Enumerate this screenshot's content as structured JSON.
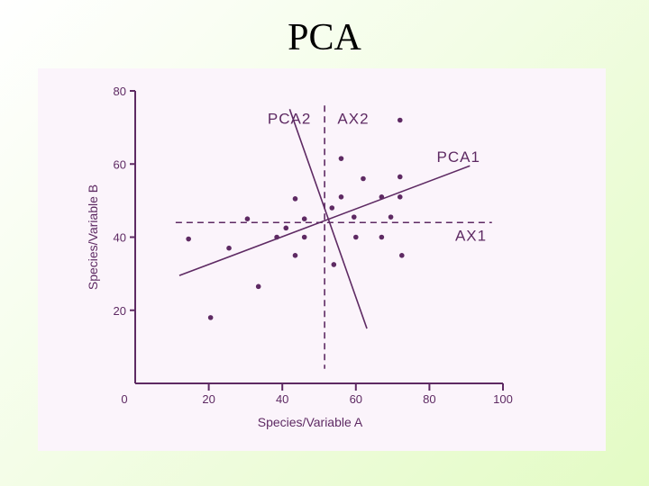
{
  "slide": {
    "title": "PCA"
  },
  "colors": {
    "ink": "#5e2a63",
    "panel": "#fbf4fb"
  },
  "chart_data": {
    "type": "scatter",
    "title": "",
    "xlabel": "Species/Variable A",
    "ylabel": "Species/Variable B",
    "xlim": [
      0,
      100
    ],
    "ylim": [
      0,
      80
    ],
    "xticks": [
      "0",
      "20",
      "40",
      "60",
      "80",
      "100"
    ],
    "yticks": [
      "20",
      "40",
      "60",
      "80"
    ],
    "grid": false,
    "points": [
      {
        "x": 72,
        "y": 72
      },
      {
        "x": 56,
        "y": 61.5
      },
      {
        "x": 62,
        "y": 56
      },
      {
        "x": 72,
        "y": 56.5
      },
      {
        "x": 43.5,
        "y": 50.5
      },
      {
        "x": 56,
        "y": 51
      },
      {
        "x": 67,
        "y": 51
      },
      {
        "x": 72,
        "y": 51
      },
      {
        "x": 53.5,
        "y": 48
      },
      {
        "x": 46,
        "y": 45
      },
      {
        "x": 30.5,
        "y": 45
      },
      {
        "x": 59.5,
        "y": 45.5
      },
      {
        "x": 69.5,
        "y": 45.5
      },
      {
        "x": 41,
        "y": 42.5
      },
      {
        "x": 14.5,
        "y": 39.5
      },
      {
        "x": 38.5,
        "y": 40
      },
      {
        "x": 46,
        "y": 40
      },
      {
        "x": 60,
        "y": 40
      },
      {
        "x": 67,
        "y": 40
      },
      {
        "x": 25.5,
        "y": 37
      },
      {
        "x": 43.5,
        "y": 35
      },
      {
        "x": 72.5,
        "y": 35
      },
      {
        "x": 54,
        "y": 32.5
      },
      {
        "x": 33.5,
        "y": 26.5
      },
      {
        "x": 20.5,
        "y": 18
      }
    ],
    "lines": [
      {
        "name": "PCA1",
        "style": "solid",
        "from": {
          "x": 12,
          "y": 29.5
        },
        "to": {
          "x": 91,
          "y": 59.5
        }
      },
      {
        "name": "PCA2",
        "style": "solid",
        "from": {
          "x": 42,
          "y": 75
        },
        "to": {
          "x": 63,
          "y": 15
        }
      },
      {
        "name": "AX1",
        "style": "dashed",
        "from": {
          "x": 11,
          "y": 44
        },
        "to": {
          "x": 97,
          "y": 44
        }
      },
      {
        "name": "AX2",
        "style": "dashed",
        "from": {
          "x": 51.5,
          "y": 76
        },
        "to": {
          "x": 51.5,
          "y": 4
        }
      }
    ],
    "line_labels": [
      {
        "text": "PCA2",
        "x": 36,
        "y": 71
      },
      {
        "text": "AX2",
        "x": 55,
        "y": 71
      },
      {
        "text": "PCA1",
        "x": 82,
        "y": 60.5
      },
      {
        "text": "AX1",
        "x": 87,
        "y": 39
      }
    ]
  }
}
